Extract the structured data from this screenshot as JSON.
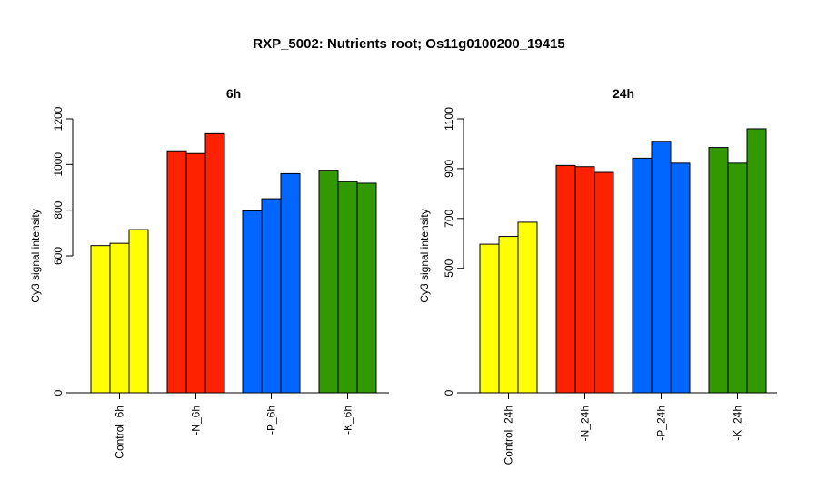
{
  "title": "RXP_5002: Nutrients root; Os11g0100200_19415",
  "colors": {
    "Control": "#ffff00",
    "N": "#ff2200",
    "P": "#0066ff",
    "K": "#339900"
  },
  "chart_data": [
    {
      "type": "bar",
      "title": "6h",
      "ylabel": "Cy3 signal intensity",
      "ylim": [
        0,
        1200
      ],
      "yticks": [
        0,
        600,
        800,
        1000,
        1200
      ],
      "categories": [
        "Control_6h",
        "-N_6h",
        "-P_6h",
        "-K_6h"
      ],
      "group_colors": [
        "#ffff00",
        "#ff2200",
        "#0066ff",
        "#339900"
      ],
      "groups": [
        {
          "label": "Control_6h",
          "values": [
            645,
            655,
            715
          ]
        },
        {
          "label": "-N_6h",
          "values": [
            1060,
            1048,
            1135
          ]
        },
        {
          "label": "-P_6h",
          "values": [
            797,
            850,
            960
          ]
        },
        {
          "label": "-K_6h",
          "values": [
            975,
            925,
            918
          ]
        }
      ]
    },
    {
      "type": "bar",
      "title": "24h",
      "ylabel": "Cy3 signal intensity",
      "ylim": [
        0,
        1100
      ],
      "yticks": [
        0,
        500,
        700,
        900,
        1100
      ],
      "categories": [
        "Control_24h",
        "-N_24h",
        "-P_24h",
        "-K_24h"
      ],
      "group_colors": [
        "#ffff00",
        "#ff2200",
        "#0066ff",
        "#339900"
      ],
      "groups": [
        {
          "label": "Control_24h",
          "values": [
            597,
            628,
            685
          ]
        },
        {
          "label": "-N_24h",
          "values": [
            913,
            908,
            885
          ]
        },
        {
          "label": "-P_24h",
          "values": [
            942,
            1010,
            922
          ]
        },
        {
          "label": "-K_24h",
          "values": [
            985,
            922,
            1060
          ]
        }
      ]
    }
  ]
}
